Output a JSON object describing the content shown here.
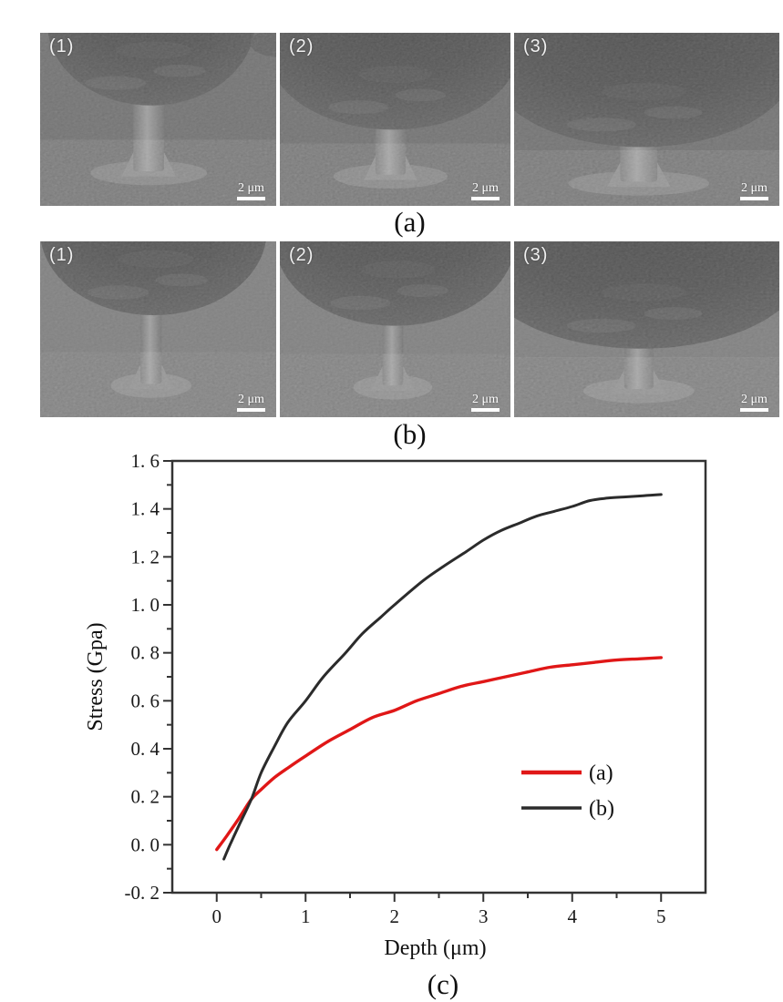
{
  "figure": {
    "rows": [
      {
        "label": "(a)",
        "panels": [
          {
            "label": "(1)",
            "scale_bar": "2 μm"
          },
          {
            "label": "(2)",
            "scale_bar": "2 μm"
          },
          {
            "label": "(3)",
            "scale_bar": "2 μm"
          }
        ]
      },
      {
        "label": "(b)",
        "panels": [
          {
            "label": "(1)",
            "scale_bar": "2 μm"
          },
          {
            "label": "(2)",
            "scale_bar": "2 μm"
          },
          {
            "label": "(3)",
            "scale_bar": "2 μm"
          }
        ]
      }
    ],
    "chart_label": "(c)"
  },
  "chart_data": {
    "type": "line",
    "title": "",
    "xlabel": "Depth (μm)",
    "ylabel": "Stress (Gpa)",
    "xlim": [
      -0.5,
      5.5
    ],
    "ylim": [
      -0.2,
      1.6
    ],
    "grid": false,
    "legend_position": "lower right",
    "x_ticks": [
      0,
      1,
      2,
      3,
      4,
      5
    ],
    "x_tick_labels": [
      "0",
      "1",
      "2",
      "3",
      "4",
      "5"
    ],
    "y_ticks": [
      1.6,
      1.4,
      1.2,
      1.0,
      0.8,
      0.6,
      0.4,
      0.2,
      0.0,
      -0.2
    ],
    "y_tick_labels": [
      "1. 6",
      "1. 4",
      "1. 2",
      "1. 0",
      "0. 8",
      "0. 6",
      "0. 4",
      "0. 2",
      "0. 0",
      "-0. 2"
    ],
    "series": [
      {
        "name": "(a)",
        "color": "#e01717",
        "points": [
          [
            0.0,
            -0.02
          ],
          [
            0.12,
            0.04
          ],
          [
            0.25,
            0.11
          ],
          [
            0.39,
            0.19
          ],
          [
            0.5,
            0.23
          ],
          [
            0.65,
            0.28
          ],
          [
            0.8,
            0.32
          ],
          [
            1.0,
            0.37
          ],
          [
            1.25,
            0.43
          ],
          [
            1.5,
            0.48
          ],
          [
            1.75,
            0.53
          ],
          [
            2.0,
            0.56
          ],
          [
            2.25,
            0.6
          ],
          [
            2.5,
            0.63
          ],
          [
            2.75,
            0.66
          ],
          [
            3.0,
            0.68
          ],
          [
            3.25,
            0.7
          ],
          [
            3.5,
            0.72
          ],
          [
            3.75,
            0.74
          ],
          [
            4.0,
            0.75
          ],
          [
            4.25,
            0.76
          ],
          [
            4.5,
            0.77
          ],
          [
            4.75,
            0.775
          ],
          [
            5.0,
            0.78
          ]
        ]
      },
      {
        "name": "(b)",
        "color": "#2b2b2b",
        "points": [
          [
            0.08,
            -0.06
          ],
          [
            0.15,
            0.0
          ],
          [
            0.25,
            0.08
          ],
          [
            0.39,
            0.19
          ],
          [
            0.5,
            0.3
          ],
          [
            0.65,
            0.41
          ],
          [
            0.8,
            0.51
          ],
          [
            1.0,
            0.6
          ],
          [
            1.2,
            0.7
          ],
          [
            1.45,
            0.8
          ],
          [
            1.64,
            0.88
          ],
          [
            1.85,
            0.95
          ],
          [
            2.0,
            1.0
          ],
          [
            2.32,
            1.1
          ],
          [
            2.55,
            1.16
          ],
          [
            2.8,
            1.22
          ],
          [
            3.0,
            1.27
          ],
          [
            3.2,
            1.31
          ],
          [
            3.4,
            1.34
          ],
          [
            3.6,
            1.37
          ],
          [
            3.8,
            1.39
          ],
          [
            4.0,
            1.41
          ],
          [
            4.2,
            1.435
          ],
          [
            4.4,
            1.445
          ],
          [
            4.6,
            1.45
          ],
          [
            4.8,
            1.455
          ],
          [
            5.0,
            1.46
          ]
        ]
      }
    ]
  },
  "colors": {
    "curve_a_red": "#e01717",
    "curve_b_black": "#2b2b2b",
    "axis_frame": "#333333",
    "sem_background": "#6e6e6e",
    "scalebar_white": "#ffffff"
  }
}
